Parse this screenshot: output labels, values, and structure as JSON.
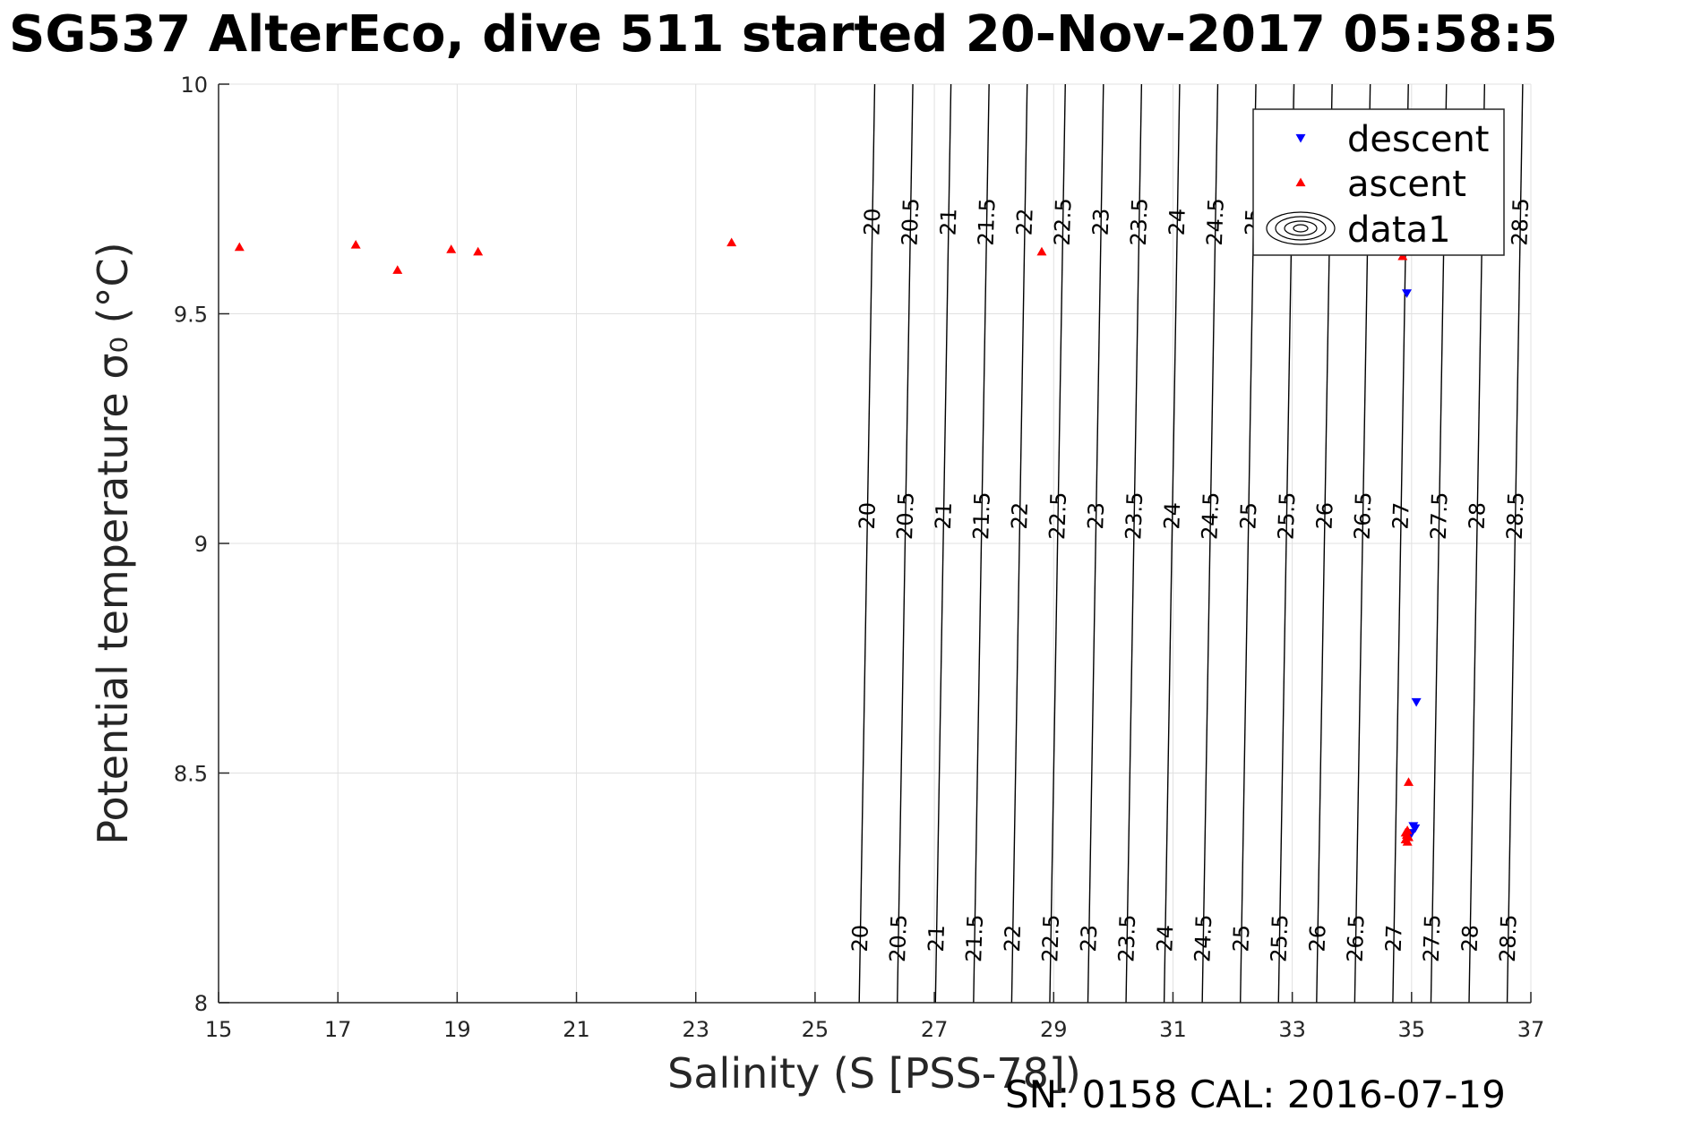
{
  "title": "SG537 AlterEco, dive 511 started 20-Nov-2017 05:58:5",
  "footer": "SN: 0158  CAL: 2016-07-19",
  "chart_data": {
    "type": "scatter",
    "title": "SG537 AlterEco, dive 511 started 20-Nov-2017 05:58:5",
    "xlabel": "Salinity (S [PSS-78])",
    "ylabel": "Potential temperature σ₀ (°C)",
    "xlim": [
      15,
      37
    ],
    "ylim": [
      8,
      10
    ],
    "xticks": [
      15,
      17,
      19,
      21,
      23,
      25,
      27,
      29,
      31,
      33,
      35,
      37
    ],
    "yticks": [
      8,
      8.5,
      9,
      9.5,
      10
    ],
    "grid": true,
    "legend_position": "top-right",
    "colors": {
      "descent": "#0000ff",
      "ascent": "#ff0000",
      "contour": "#000000",
      "grid": "#e0e0e0"
    },
    "series": [
      {
        "name": "descent",
        "marker": "triangle-down",
        "color": "#0000ff",
        "x": [
          34.92,
          35.08,
          35.03,
          35.06,
          35.0,
          34.98
        ],
        "y": [
          9.545,
          8.655,
          8.385,
          8.38,
          8.37,
          8.365
        ]
      },
      {
        "name": "ascent",
        "marker": "triangle-up",
        "color": "#ff0000",
        "x": [
          15.35,
          17.3,
          18.0,
          18.9,
          19.35,
          23.6,
          28.8,
          34.85,
          34.95,
          34.93,
          34.9,
          34.92,
          34.95,
          34.9,
          34.93
        ],
        "y": [
          9.645,
          9.65,
          9.595,
          9.64,
          9.635,
          9.655,
          9.635,
          9.625,
          8.48,
          8.375,
          8.37,
          8.365,
          8.36,
          8.355,
          8.35
        ]
      },
      {
        "name": "data1",
        "type": "contour",
        "levels": [
          20,
          20.5,
          21,
          21.5,
          22,
          22.5,
          23,
          23.5,
          24,
          24.5,
          25,
          25.5,
          26,
          26.5,
          27,
          27.5,
          28,
          28.5
        ]
      }
    ]
  }
}
